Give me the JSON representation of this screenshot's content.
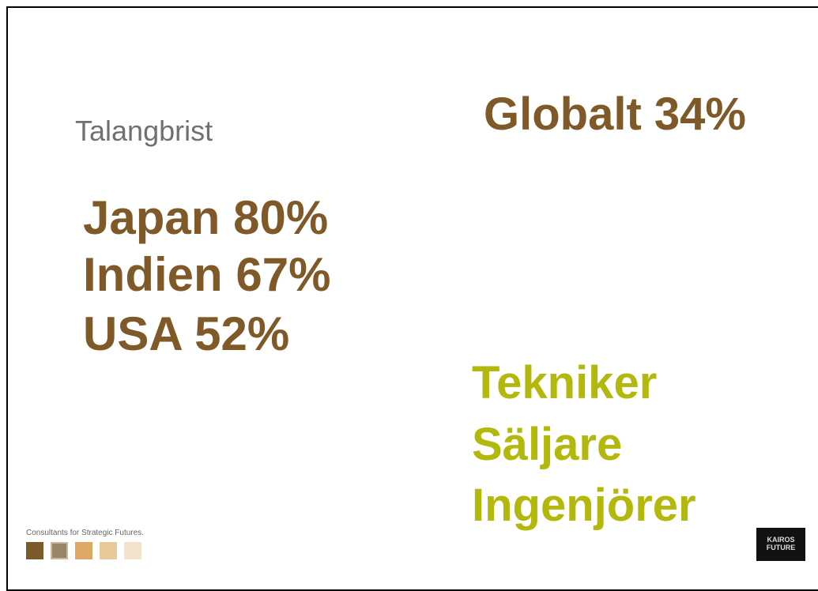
{
  "header": {
    "title": "Talangbrist"
  },
  "global": "Globalt 34%",
  "countries": [
    "Japan 80%",
    "Indien 67%",
    "USA 52%"
  ],
  "roles": [
    "Tekniker",
    "Säljare",
    "Ingenjörer"
  ],
  "footer": {
    "tagline": "Consultants for Strategic Futures.",
    "logo": [
      "KAIROS",
      "FUTURE"
    ]
  }
}
